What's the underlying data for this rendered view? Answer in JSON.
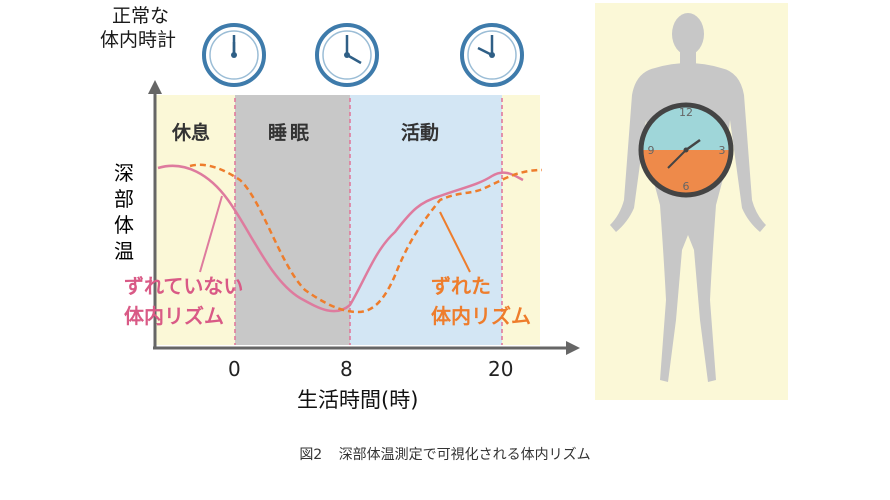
{
  "clock_heading": [
    "正常な",
    "体内時計"
  ],
  "phases": {
    "rest": "休息",
    "sleep": "睡眠",
    "active": "活動"
  },
  "y_axis_label": [
    "深",
    "部",
    "体",
    "温"
  ],
  "x_ticks": [
    "0",
    "8",
    "20"
  ],
  "x_axis_label": "生活時間(時)",
  "curve_labels": {
    "aligned": [
      "ずれていない",
      "体内リズム"
    ],
    "shifted": [
      "ずれた",
      "体内リズム"
    ]
  },
  "caption": {
    "figure_no": "図2",
    "title": "深部体温測定で可視化される体内リズム"
  },
  "body_clock_numbers": [
    "12",
    "3",
    "6",
    "9"
  ],
  "colors": {
    "rest_band": "#fbf8d7",
    "sleep_band": "#c8c8c8",
    "active_band": "#d3e6f4",
    "aligned_curve": "#de7b9e",
    "shifted_curve": "#ee7d2c",
    "clock_ring": "#3e7bab",
    "body_silhouette": "#c7c7c7",
    "body_clock_top": "#9fd6d9",
    "body_clock_bottom": "#ee8a4a"
  }
}
